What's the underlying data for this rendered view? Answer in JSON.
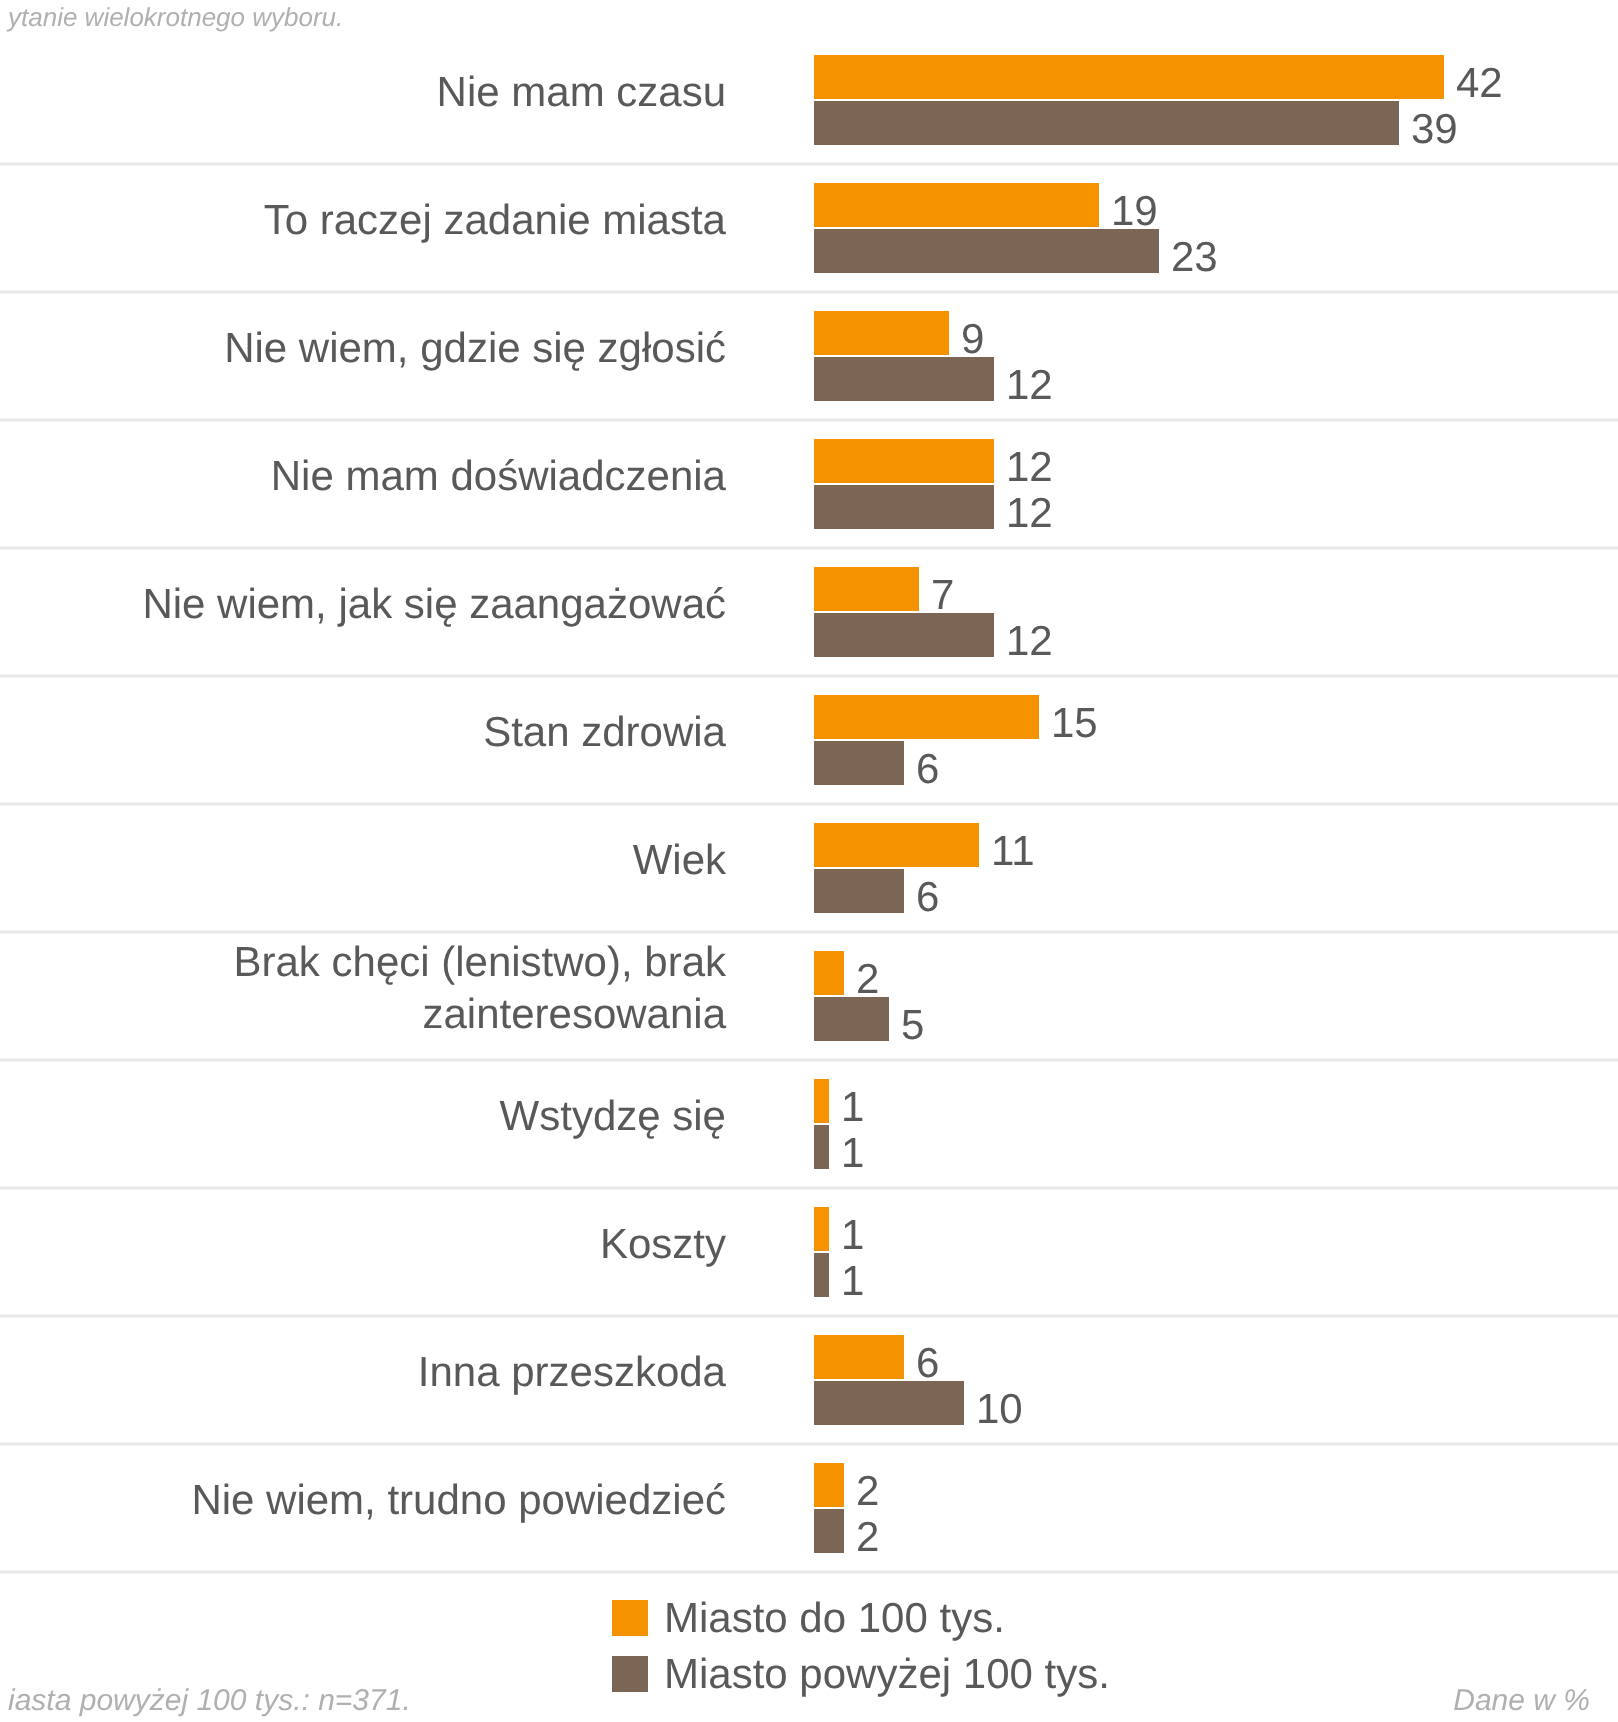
{
  "chart_data": {
    "type": "bar",
    "orientation": "horizontal",
    "categories": [
      "Nie mam czasu",
      "To raczej zadanie miasta",
      "Nie wiem, gdzie się zgłosić",
      "Nie mam doświadczenia",
      "Nie wiem, jak się zaangażować",
      "Stan zdrowia",
      "Wiek",
      "Brak chęci (lenistwo), brak zainteresowania",
      "Wstydzę się",
      "Koszty",
      "Inna przeszkoda",
      "Nie wiem, trudno powiedzieć"
    ],
    "series": [
      {
        "name": "Miasto do 100 tys.",
        "color": "#f59200",
        "values": [
          42,
          19,
          9,
          12,
          7,
          15,
          11,
          2,
          1,
          1,
          6,
          2
        ]
      },
      {
        "name": "Miasto powyżej 100 tys.",
        "color": "#7b6655",
        "values": [
          39,
          23,
          12,
          12,
          12,
          6,
          6,
          5,
          1,
          1,
          10,
          2
        ]
      }
    ],
    "data_labels": true,
    "grid": "y",
    "legend": "bottom",
    "annotations": [
      "ytanie wielokrotnego wyboru.",
      "iasta powyżej 100 tys.: n=371.",
      "Dane w %"
    ]
  }
}
